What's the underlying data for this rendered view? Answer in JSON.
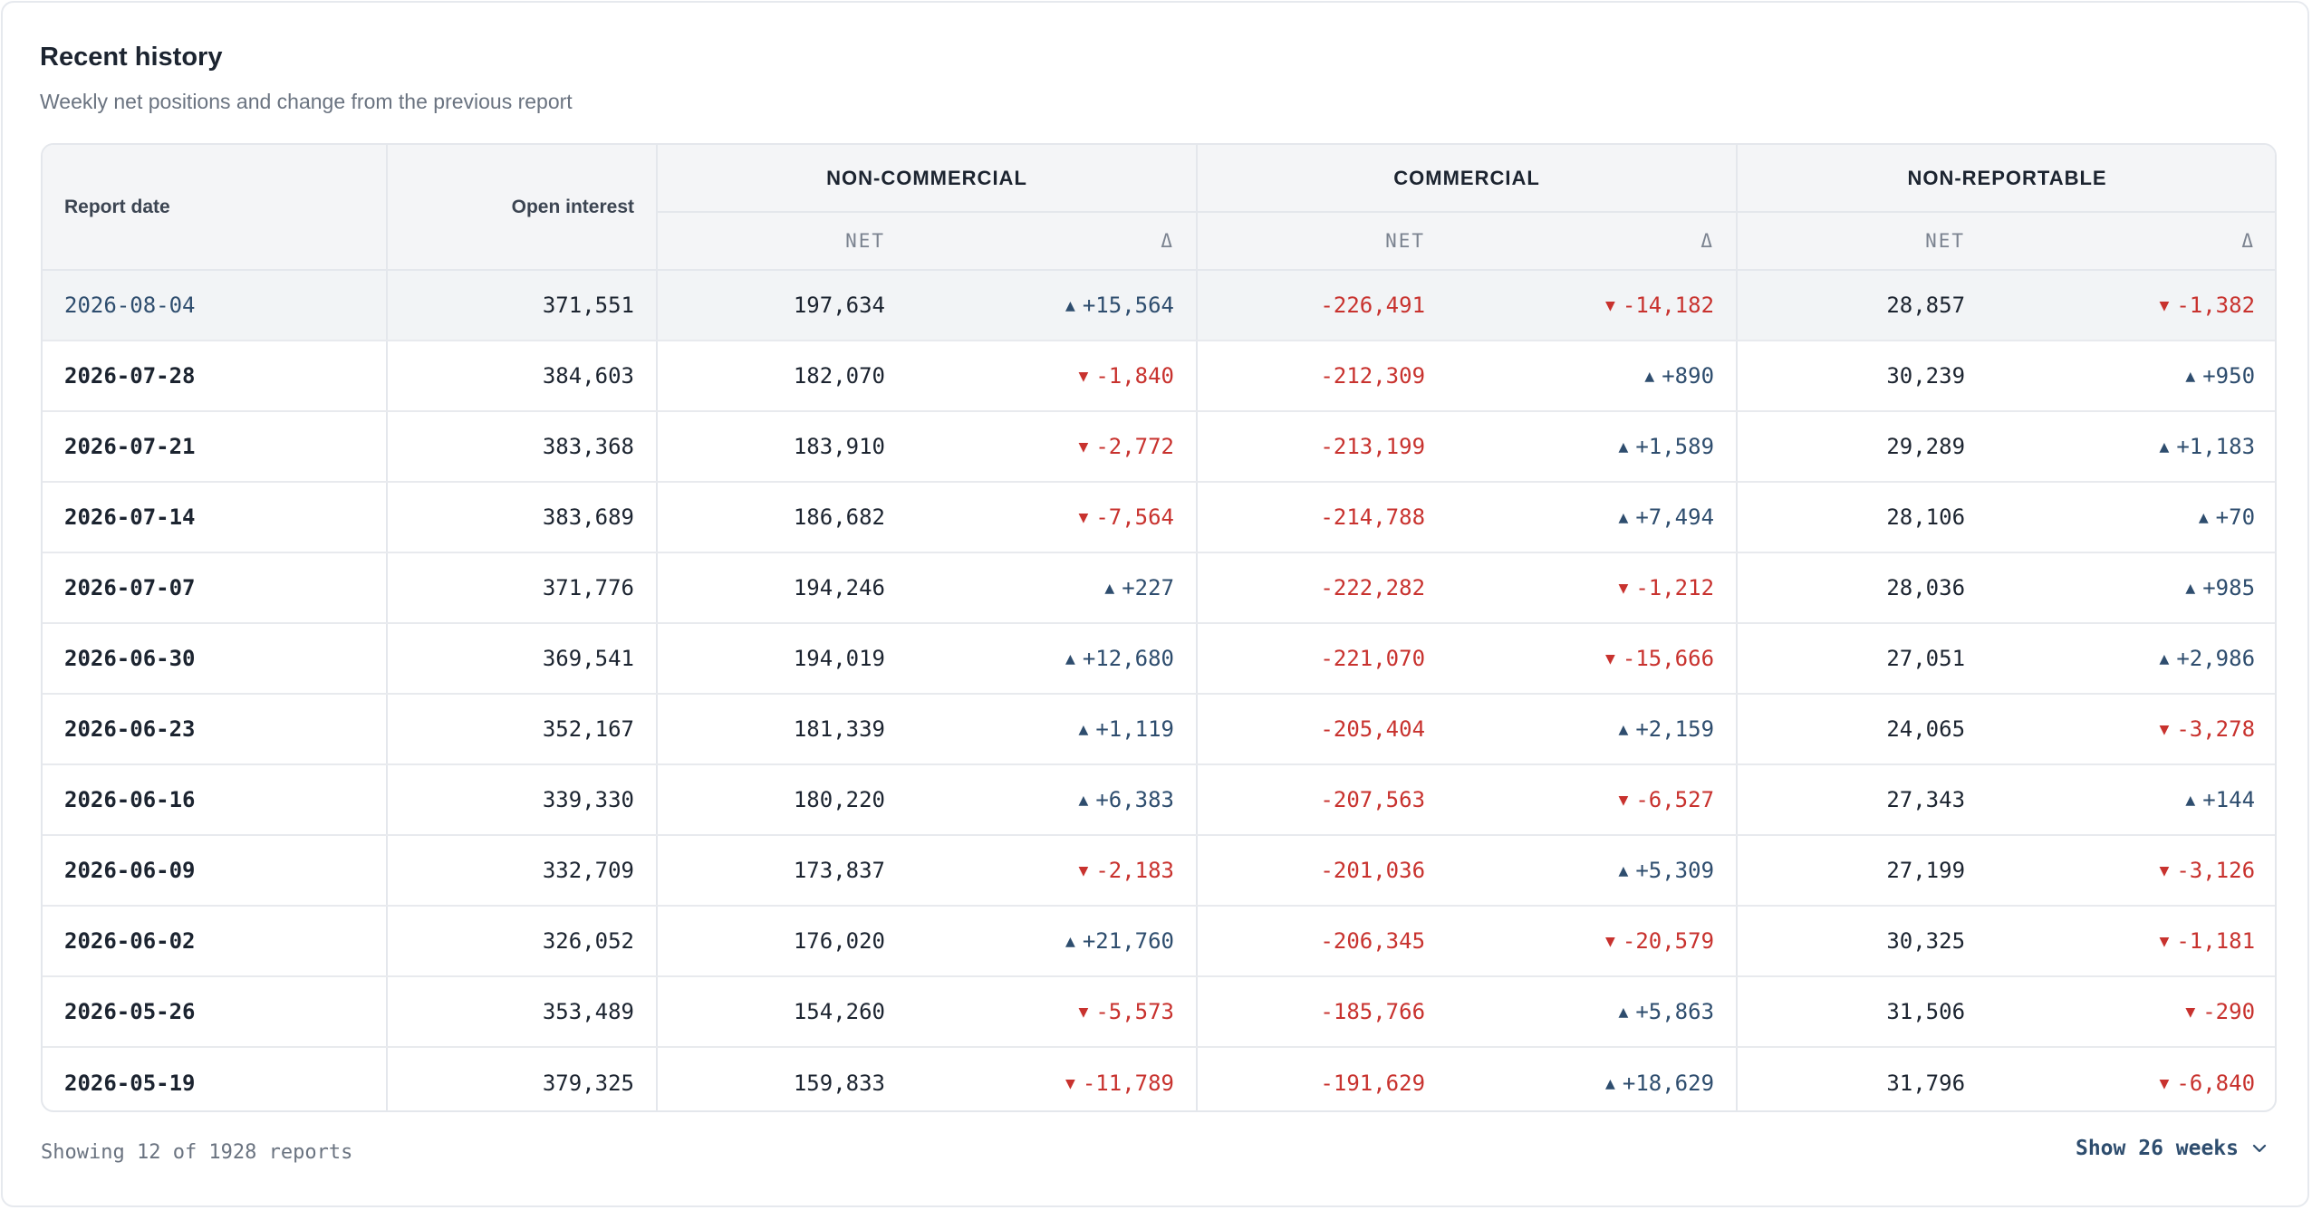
{
  "header": {
    "title": "Recent history",
    "subtitle": "Weekly net positions and change from the previous report"
  },
  "table": {
    "columns": {
      "date": "Report date",
      "open_interest": "Open interest",
      "groups": [
        "NON-COMMERCIAL",
        "COMMERCIAL",
        "NON-REPORTABLE"
      ],
      "net": "NET",
      "delta": "Δ"
    },
    "rows": [
      {
        "date": "2026-08-04",
        "oi": "371,551",
        "nc_net": "197,634",
        "nc_delta": "+15,564",
        "c_net": "-226,491",
        "c_delta": "-14,182",
        "nr_net": "28,857",
        "nr_delta": "-1,382"
      },
      {
        "date": "2026-07-28",
        "oi": "384,603",
        "nc_net": "182,070",
        "nc_delta": "-1,840",
        "c_net": "-212,309",
        "c_delta": "+890",
        "nr_net": "30,239",
        "nr_delta": "+950"
      },
      {
        "date": "2026-07-21",
        "oi": "383,368",
        "nc_net": "183,910",
        "nc_delta": "-2,772",
        "c_net": "-213,199",
        "c_delta": "+1,589",
        "nr_net": "29,289",
        "nr_delta": "+1,183"
      },
      {
        "date": "2026-07-14",
        "oi": "383,689",
        "nc_net": "186,682",
        "nc_delta": "-7,564",
        "c_net": "-214,788",
        "c_delta": "+7,494",
        "nr_net": "28,106",
        "nr_delta": "+70"
      },
      {
        "date": "2026-07-07",
        "oi": "371,776",
        "nc_net": "194,246",
        "nc_delta": "+227",
        "c_net": "-222,282",
        "c_delta": "-1,212",
        "nr_net": "28,036",
        "nr_delta": "+985"
      },
      {
        "date": "2026-06-30",
        "oi": "369,541",
        "nc_net": "194,019",
        "nc_delta": "+12,680",
        "c_net": "-221,070",
        "c_delta": "-15,666",
        "nr_net": "27,051",
        "nr_delta": "+2,986"
      },
      {
        "date": "2026-06-23",
        "oi": "352,167",
        "nc_net": "181,339",
        "nc_delta": "+1,119",
        "c_net": "-205,404",
        "c_delta": "+2,159",
        "nr_net": "24,065",
        "nr_delta": "-3,278"
      },
      {
        "date": "2026-06-16",
        "oi": "339,330",
        "nc_net": "180,220",
        "nc_delta": "+6,383",
        "c_net": "-207,563",
        "c_delta": "-6,527",
        "nr_net": "27,343",
        "nr_delta": "+144"
      },
      {
        "date": "2026-06-09",
        "oi": "332,709",
        "nc_net": "173,837",
        "nc_delta": "-2,183",
        "c_net": "-201,036",
        "c_delta": "+5,309",
        "nr_net": "27,199",
        "nr_delta": "-3,126"
      },
      {
        "date": "2026-06-02",
        "oi": "326,052",
        "nc_net": "176,020",
        "nc_delta": "+21,760",
        "c_net": "-206,345",
        "c_delta": "-20,579",
        "nr_net": "30,325",
        "nr_delta": "-1,181"
      },
      {
        "date": "2026-05-26",
        "oi": "353,489",
        "nc_net": "154,260",
        "nc_delta": "-5,573",
        "c_net": "-185,766",
        "c_delta": "+5,863",
        "nr_net": "31,506",
        "nr_delta": "-290"
      },
      {
        "date": "2026-05-19",
        "oi": "379,325",
        "nc_net": "159,833",
        "nc_delta": "-11,789",
        "c_net": "-191,629",
        "c_delta": "+18,629",
        "nr_net": "31,796",
        "nr_delta": "-6,840"
      }
    ],
    "selected_row": 0
  },
  "footer": {
    "count_text": "Showing 12 of 1928 reports",
    "show_button": "Show 26 weeks"
  },
  "colors": {
    "positive": "#2e4d6e",
    "negative": "#c8322e"
  },
  "icons": {
    "up": "triangle-up-icon",
    "down": "triangle-down-icon",
    "chevron": "chevron-down-icon"
  }
}
